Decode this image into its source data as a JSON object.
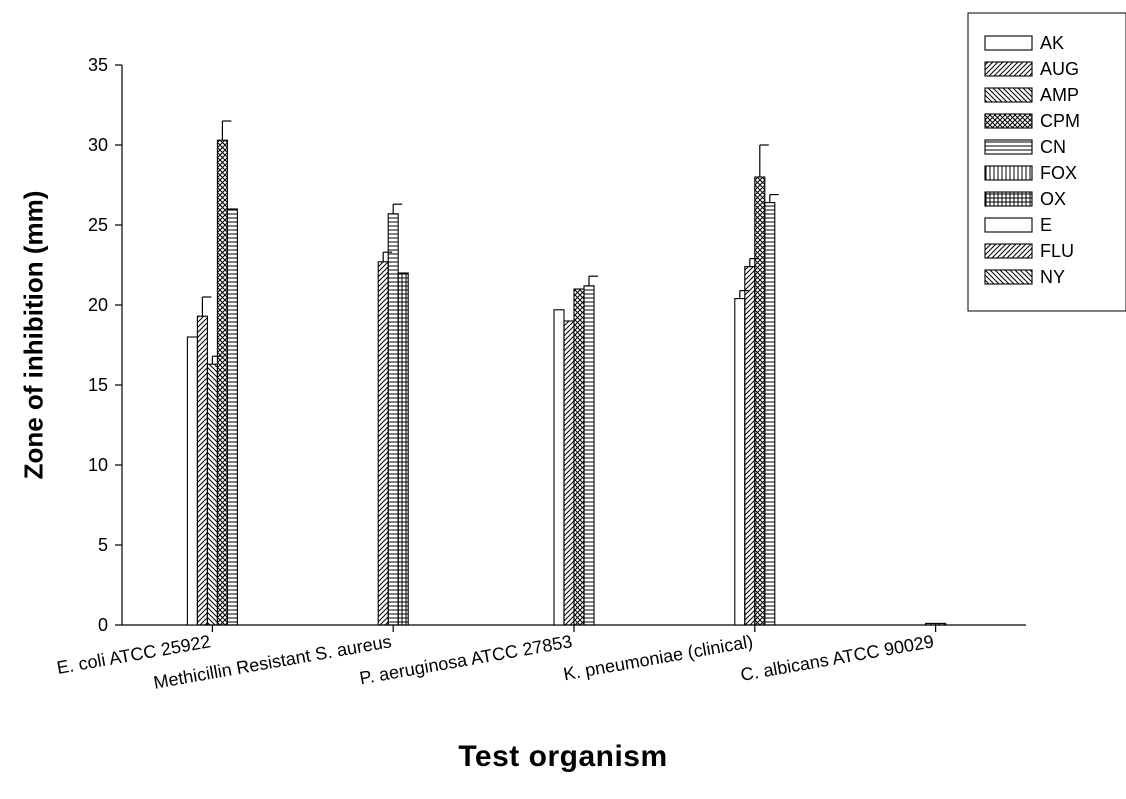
{
  "chart_data": {
    "type": "bar",
    "categories": [
      "E. coli ATCC 25922",
      "Methicillin Resistant S. aureus",
      "P. aeruginosa ATCC 27853",
      "K. pneumoniae (clinical)",
      "C. albicans ATCC 90029"
    ],
    "xlabel": "Test organism",
    "ylabel": "Zone of inhibition (mm)",
    "ylim": [
      0,
      35
    ],
    "yticks": [
      "0",
      "5",
      "10",
      "15",
      "20",
      "25",
      "30",
      "35"
    ],
    "legend_position": "top-right",
    "grid": false,
    "error_bars": true,
    "series": [
      {
        "name": "AK",
        "pattern": "none",
        "values": [
          18.0,
          0,
          19.7,
          20.4,
          0
        ],
        "errors": [
          0,
          0,
          0,
          0.5,
          0
        ]
      },
      {
        "name": "AUG",
        "pattern": "diag-wide",
        "values": [
          19.3,
          22.7,
          19.0,
          22.4,
          0
        ],
        "errors": [
          1.2,
          0.6,
          0,
          0.5,
          0
        ]
      },
      {
        "name": "AMP",
        "pattern": "diag-back",
        "values": [
          16.3,
          0,
          0,
          0,
          0
        ],
        "errors": [
          0.5,
          0,
          0,
          0,
          0
        ]
      },
      {
        "name": "CPM",
        "pattern": "crosshatch",
        "values": [
          30.3,
          0,
          21.0,
          28.0,
          0
        ],
        "errors": [
          1.2,
          0,
          0,
          2.0,
          0
        ]
      },
      {
        "name": "CN",
        "pattern": "horizontal",
        "values": [
          26.0,
          25.7,
          21.2,
          26.4,
          0
        ],
        "errors": [
          0,
          0.6,
          0.6,
          0.5,
          0
        ]
      },
      {
        "name": "FOX",
        "pattern": "vertical",
        "values": [
          0,
          0,
          0,
          0,
          0
        ],
        "errors": [
          0,
          0,
          0,
          0,
          0
        ]
      },
      {
        "name": "OX",
        "pattern": "grid",
        "values": [
          0,
          22.0,
          0,
          0,
          0
        ],
        "errors": [
          0,
          0,
          0,
          0,
          0
        ]
      },
      {
        "name": "E",
        "pattern": "none",
        "values": [
          0,
          0,
          0,
          0,
          0
        ],
        "errors": [
          0,
          0,
          0,
          0,
          0
        ]
      },
      {
        "name": "FLU",
        "pattern": "diag-wide",
        "values": [
          0,
          0,
          0,
          0,
          0.1
        ],
        "errors": [
          0,
          0,
          0,
          0,
          0
        ]
      },
      {
        "name": "NY",
        "pattern": "diag-back",
        "values": [
          0,
          0,
          0,
          0,
          0.1
        ],
        "errors": [
          0,
          0,
          0,
          0,
          0
        ]
      }
    ]
  }
}
